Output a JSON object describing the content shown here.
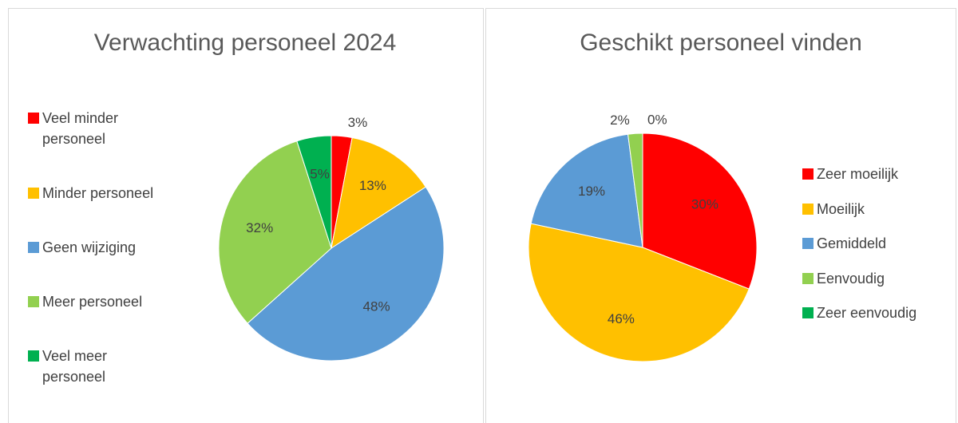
{
  "chart_data": [
    {
      "type": "pie",
      "title": "Verwachting personeel 2024",
      "categories": [
        "Veel minder personeel",
        "Minder personeel",
        "Geen wijziging",
        "Meer personeel",
        "Veel meer personeel"
      ],
      "values": [
        3,
        13,
        48,
        32,
        5
      ],
      "value_labels": [
        "3%",
        "13%",
        "48%",
        "32%",
        "5%"
      ],
      "colors": [
        "#ff0000",
        "#ffc000",
        "#5b9bd5",
        "#92d050",
        "#00b050"
      ],
      "legend": "left"
    },
    {
      "type": "pie",
      "title": "Geschikt personeel vinden",
      "categories": [
        "Zeer moeilijk",
        "Moeilijk",
        "Gemiddeld",
        "Eenvoudig",
        "Zeer eenvoudig"
      ],
      "values": [
        30,
        46,
        19,
        2,
        0
      ],
      "value_labels": [
        "30%",
        "46%",
        "19%",
        "2%",
        "0%"
      ],
      "colors": [
        "#ff0000",
        "#ffc000",
        "#5b9bd5",
        "#92d050",
        "#00b050"
      ],
      "legend": "right"
    }
  ]
}
